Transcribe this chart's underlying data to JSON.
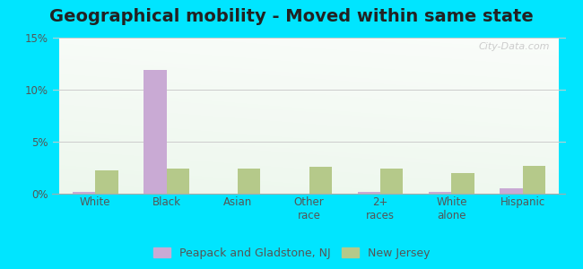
{
  "title": "Geographical mobility - Moved within same state",
  "categories": [
    "White",
    "Black",
    "Asian",
    "Other\nrace",
    "2+\nraces",
    "White\nalone",
    "Hispanic"
  ],
  "city_values": [
    0.2,
    11.9,
    0.0,
    0.0,
    0.2,
    0.2,
    0.5
  ],
  "state_values": [
    2.2,
    2.4,
    2.4,
    2.6,
    2.4,
    2.0,
    2.7
  ],
  "city_color": "#c9aad4",
  "state_color": "#b5c98a",
  "ylim": [
    0,
    15
  ],
  "yticks": [
    0,
    5,
    10,
    15
  ],
  "ytick_labels": [
    "0%",
    "5%",
    "10%",
    "15%"
  ],
  "city_label": "Peapack and Gladstone, NJ",
  "state_label": "New Jersey",
  "outer_bg": "#00e5ff",
  "title_fontsize": 14,
  "tick_fontsize": 8.5,
  "legend_fontsize": 9,
  "bar_width": 0.32,
  "watermark": "City-Data.com"
}
